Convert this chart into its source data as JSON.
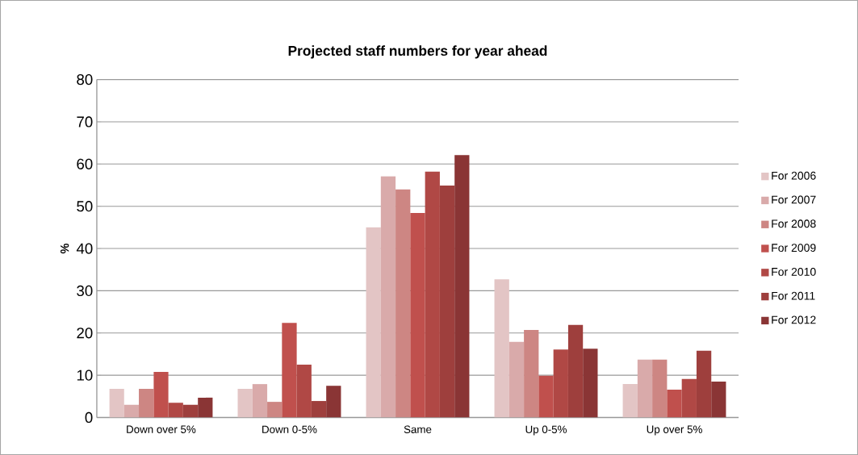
{
  "chart_data": {
    "type": "bar",
    "title": "Projected staff numbers for year ahead",
    "ylabel": "%",
    "categories": [
      "Down over 5%",
      "Down 0-5%",
      "Same",
      "Up 0-5%",
      "Up over 5%"
    ],
    "series": [
      {
        "name": "For 2006",
        "color": "#e3c5c5",
        "values": [
          6.8,
          6.8,
          45,
          32.7,
          7.9
        ]
      },
      {
        "name": "For 2007",
        "color": "#d9aaaa",
        "values": [
          3,
          7.9,
          57.1,
          17.9,
          13.7
        ]
      },
      {
        "name": "For 2008",
        "color": "#cd8683",
        "values": [
          6.8,
          3.7,
          54,
          20.7,
          13.7
        ]
      },
      {
        "name": "For 2009",
        "color": "#c0504d",
        "values": [
          10.8,
          22.4,
          48.4,
          9.9,
          6.6
        ]
      },
      {
        "name": "For 2010",
        "color": "#b04845",
        "values": [
          3.5,
          12.5,
          58.2,
          16.1,
          9.1
        ]
      },
      {
        "name": "For 2011",
        "color": "#9e3f3d",
        "values": [
          3,
          3.9,
          54.9,
          21.9,
          15.8
        ]
      },
      {
        "name": "For 2012",
        "color": "#8a3535",
        "values": [
          4.7,
          7.5,
          62.1,
          16.3,
          8.5
        ]
      }
    ],
    "ylim": [
      0,
      80
    ],
    "yticks": [
      0,
      10,
      20,
      30,
      40,
      50,
      60,
      70,
      80
    ],
    "grid": "y",
    "legend": "right"
  }
}
